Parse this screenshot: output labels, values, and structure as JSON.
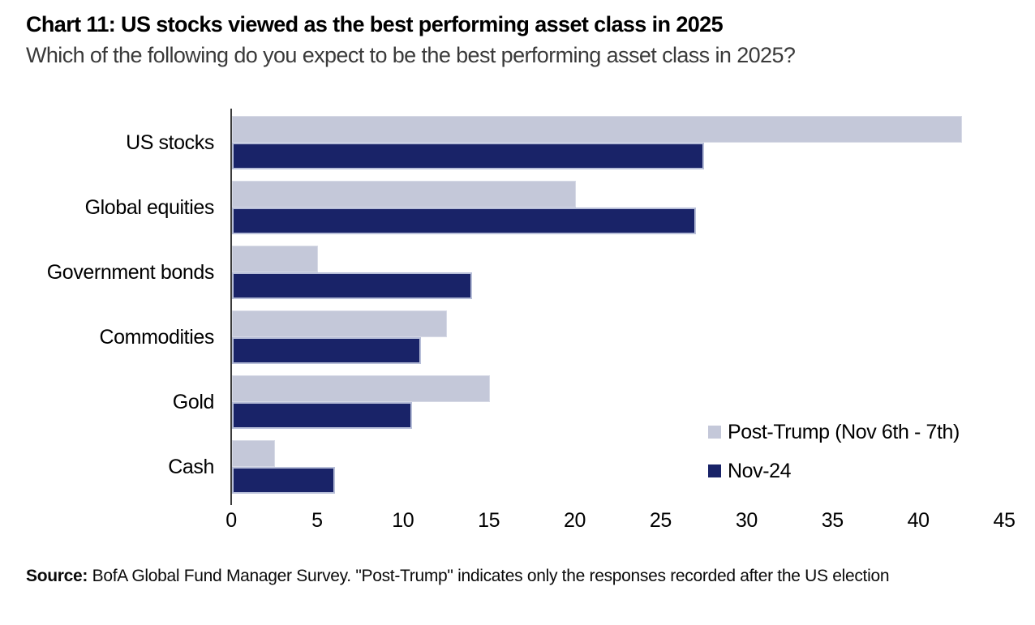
{
  "header": {
    "title": "Chart 11: US stocks viewed as the best performing asset class in 2025",
    "subtitle": "Which of the following do you expect to be the best performing asset class in 2025?"
  },
  "chart_data": {
    "type": "bar",
    "orientation": "horizontal",
    "title": "Chart 11: US stocks viewed as the best performing asset class in 2025",
    "subtitle": "Which of the following do you expect to be the best performing asset class in 2025?",
    "categories": [
      "US stocks",
      "Global equities",
      "Government bonds",
      "Commodities",
      "Gold",
      "Cash"
    ],
    "series": [
      {
        "name": "Post-Trump (Nov 6th - 7th)",
        "color": "#c4c8d9",
        "values": [
          42.5,
          20,
          5,
          12.5,
          15,
          2.5
        ]
      },
      {
        "name": "Nov-24",
        "color": "#192368",
        "values": [
          27.5,
          27,
          14,
          11,
          10.5,
          6
        ]
      }
    ],
    "xlim": [
      0,
      45
    ],
    "xticks": [
      0,
      5,
      10,
      15,
      20,
      25,
      30,
      35,
      40,
      45
    ],
    "xlabel": "",
    "ylabel": "",
    "grid": false,
    "legend_position": "inside-bottom-right",
    "plot_background": "#ffffff"
  },
  "footer": {
    "source_label": "Source:",
    "source_text": " BofA Global Fund Manager Survey. \"Post-Trump\" indicates only the responses recorded after the US election"
  }
}
